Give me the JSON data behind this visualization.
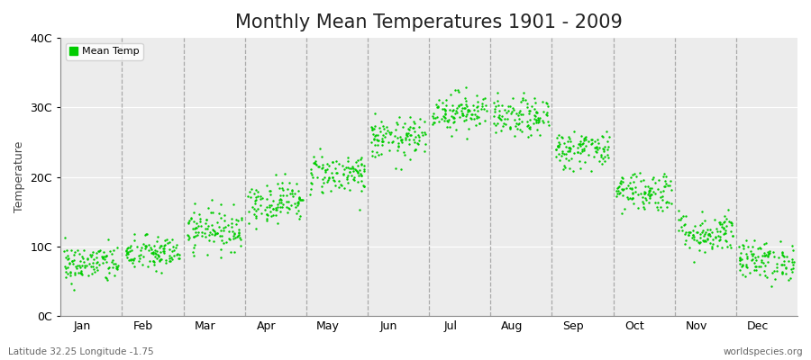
{
  "title": "Monthly Mean Temperatures 1901 - 2009",
  "ylabel": "Temperature",
  "xlabel": "",
  "ylim": [
    0,
    40
  ],
  "ytick_labels": [
    "0C",
    "10C",
    "20C",
    "30C",
    "40C"
  ],
  "ytick_values": [
    0,
    10,
    20,
    30,
    40
  ],
  "months": [
    "Jan",
    "Feb",
    "Mar",
    "Apr",
    "May",
    "Jun",
    "Jul",
    "Aug",
    "Sep",
    "Oct",
    "Nov",
    "Dec"
  ],
  "monthly_means": [
    7.5,
    9.0,
    12.5,
    16.5,
    20.5,
    25.5,
    29.5,
    28.5,
    24.0,
    18.0,
    12.0,
    8.0
  ],
  "monthly_stds": [
    1.4,
    1.3,
    1.5,
    1.5,
    1.5,
    1.5,
    1.4,
    1.4,
    1.4,
    1.5,
    1.5,
    1.4
  ],
  "n_years": 109,
  "dot_color": "#00CC00",
  "dot_size": 3,
  "legend_label": "Mean Temp",
  "bg_color": "#FFFFFF",
  "plot_bg_color": "#ECECEC",
  "vline_color": "#AAAAAA",
  "hline_color": "#FFFFFF",
  "subtitle_left": "Latitude 32.25 Longitude -1.75",
  "subtitle_right": "worldspecies.org",
  "title_fontsize": 15,
  "label_fontsize": 9,
  "tick_fontsize": 9
}
